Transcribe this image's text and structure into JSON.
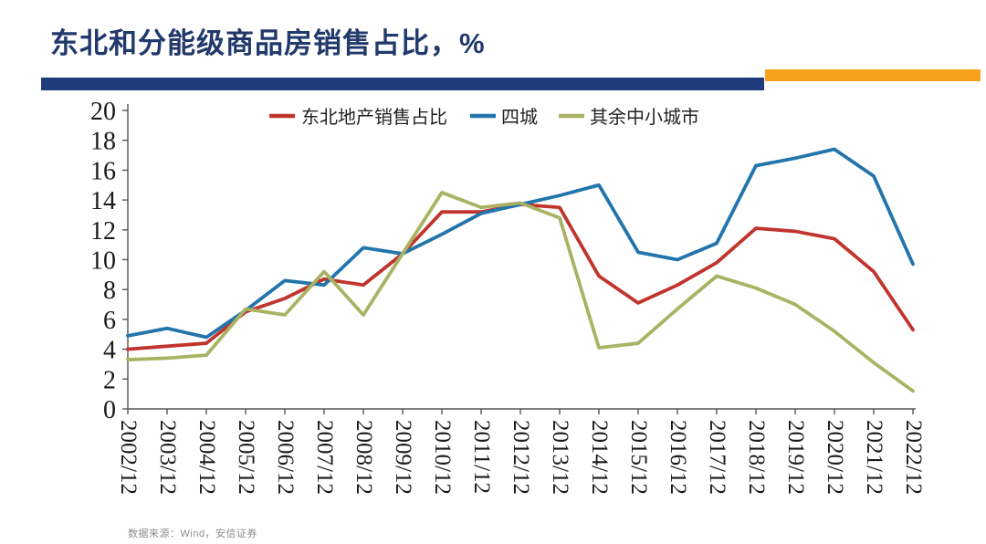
{
  "header": {
    "title": "东北和分能级商品房销售占比，%"
  },
  "footer": {
    "source": "数据来源：Wind，安信证券"
  },
  "colors": {
    "title_text": "#21396B",
    "navy_bar": "#1E3C7B",
    "orange_bar": "#F7A11E",
    "axis": "#555555",
    "series_red": "#C1342D",
    "series_blue": "#2274AC",
    "series_olive": "#A9B363"
  },
  "chart_data": {
    "type": "line",
    "title": "东北和分能级商品房销售占比，%",
    "x": [
      "2002/12",
      "2003/12",
      "2004/12",
      "2005/12",
      "2006/12",
      "2007/12",
      "2008/12",
      "2009/12",
      "2010/12",
      "2011/12",
      "2012/12",
      "2013/12",
      "2014/12",
      "2015/12",
      "2016/12",
      "2017/12",
      "2018/12",
      "2019/12",
      "2020/12",
      "2021/12",
      "2022/12"
    ],
    "series": [
      {
        "name": "东北地产销售占比",
        "color": "#C1342D",
        "values": [
          4.0,
          4.2,
          4.4,
          6.5,
          7.4,
          8.7,
          8.3,
          10.4,
          13.2,
          13.2,
          13.7,
          13.5,
          8.9,
          7.1,
          8.3,
          9.8,
          12.1,
          11.9,
          11.4,
          9.2,
          5.3
        ]
      },
      {
        "name": "四城",
        "color": "#2274AC",
        "values": [
          4.9,
          5.4,
          4.8,
          6.6,
          8.6,
          8.3,
          10.8,
          10.4,
          11.7,
          13.1,
          13.7,
          14.3,
          15.0,
          10.5,
          10.0,
          11.1,
          16.3,
          16.8,
          17.4,
          15.6,
          9.7
        ]
      },
      {
        "name": "其余中小城市",
        "color": "#A9B363",
        "values": [
          3.3,
          3.4,
          3.6,
          6.7,
          6.3,
          9.2,
          6.3,
          10.4,
          14.5,
          13.5,
          13.8,
          12.8,
          4.1,
          4.4,
          6.7,
          8.9,
          8.1,
          7.0,
          5.2,
          3.1,
          1.2
        ]
      }
    ],
    "ylim": [
      0,
      20
    ],
    "ytick_step": 2,
    "grid": false,
    "legend_position": "top-center"
  }
}
